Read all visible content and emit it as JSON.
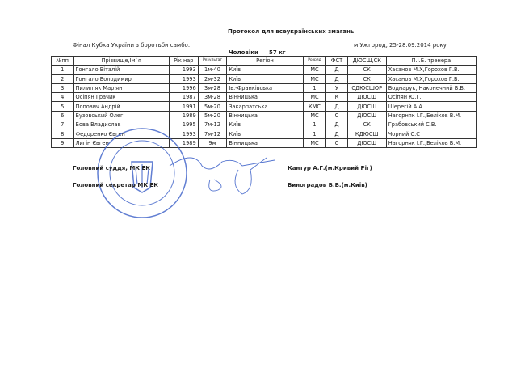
{
  "title": "Протокол для всеукраїнських змагань",
  "event": "Фінал Кубка України з боротьби самбо.",
  "place_date": "м.Ужгород, 25-28.09.2014 року",
  "category": "Чоловіки",
  "weight": "57 кг",
  "columns": [
    "№пп",
    "Прізвище,Ім`я",
    "Рік нар",
    "Результат",
    "Регіон",
    "Розряд",
    "ФСТ",
    "ДЮСШ,СК",
    "П.І.Б. тренера"
  ],
  "rows": [
    [
      "1",
      "Гонгало Віталій",
      "1993",
      "1м-40",
      "Київ",
      "МС",
      "Д",
      "СК",
      "Хасанов М.Х,Горохов Г.В."
    ],
    [
      "2",
      "Гонгало Володимир",
      "1993",
      "2м-32",
      "Київ",
      "МС",
      "Д",
      "СК",
      "Хасанов М.Х,Горохов Г.В."
    ],
    [
      "3",
      "Пилип'як Мар'ян",
      "1996",
      "3м-28",
      "Ів.-Франківська",
      "1",
      "У",
      "СДЮСШОР",
      "Боднарук, Наконечний В.В."
    ],
    [
      "4",
      "Осіпян Грачик",
      "1987",
      "3м-28",
      "Вінницька",
      "МС",
      "К",
      "ДЮСШ",
      "Осіпян Ю.Г."
    ],
    [
      "5",
      "Попович Андрій",
      "1991",
      "5м-20",
      "Закарпатська",
      "КМС",
      "Д",
      "ДЮСШ",
      "Шерегій А.А."
    ],
    [
      "6",
      "Бузовський Олег",
      "1989",
      "5м-20",
      "Вінницька",
      "МС",
      "С",
      "ДЮСШ",
      "Нагорняк І.Г.,Беліков В.М."
    ],
    [
      "7",
      "Бова Владислав",
      "1995",
      "7м-12",
      "Київ",
      "1",
      "Д",
      "СК",
      "Грабовський С.В."
    ],
    [
      "8",
      "Федоренко Євген",
      "1993",
      "7м-12",
      "Київ",
      "1",
      "Д",
      "КДЮСШ",
      "Чорний С.С"
    ],
    [
      "9",
      "Лигін Євген",
      "1989",
      "9м",
      "Вінницька",
      "МС",
      "С",
      "ДЮСШ",
      "Нагорняк І.Г.,Беліков В.М."
    ]
  ],
  "signatures": {
    "judge_label": "Головний суддя, МК ЕК",
    "judge_name": "Кантур А.Г.(м.Кривий Ріг)",
    "secretary_label": "Головний секретар  МК ЕК",
    "secretary_name": "Виноградов В.В.(м.Київ)"
  },
  "stamp_color": "#3a5fc8"
}
